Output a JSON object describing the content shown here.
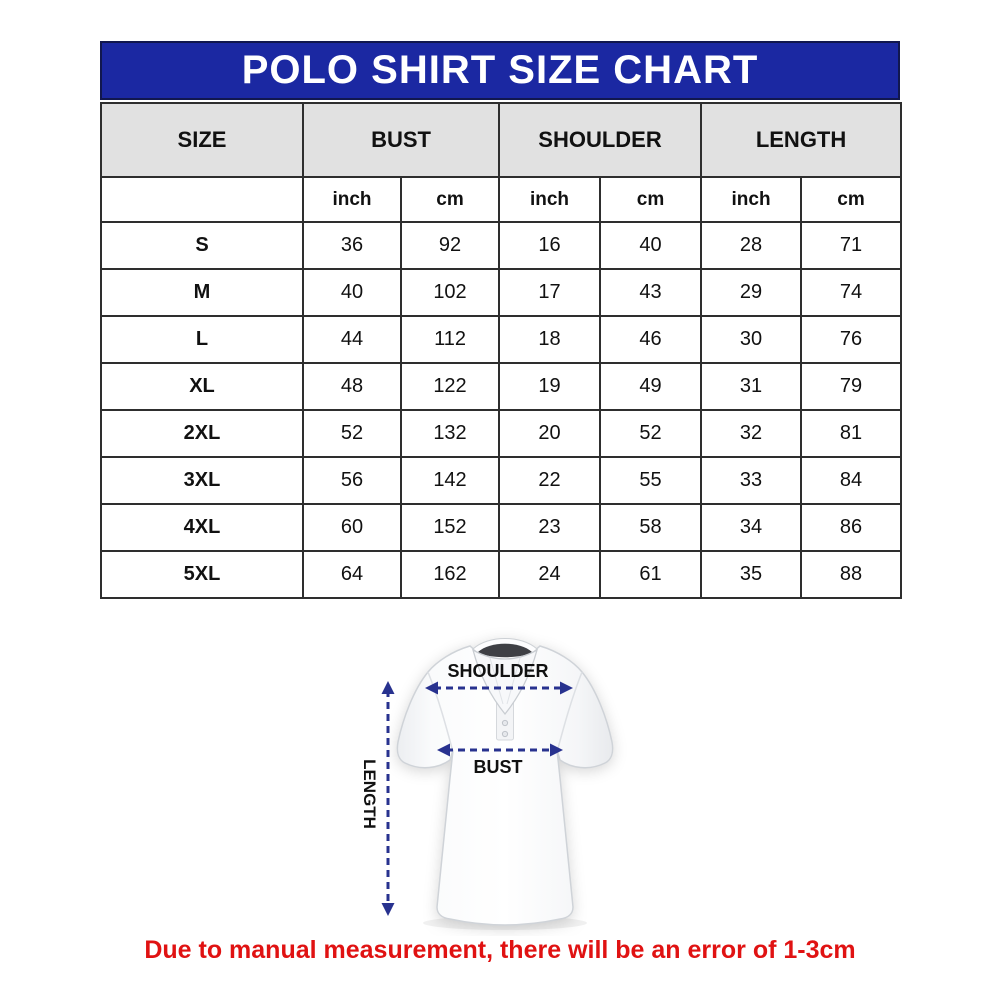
{
  "title": "POLO SHIRT SIZE CHART",
  "footnote": "Due to manual measurement, there will be an error of 1-3cm",
  "colors": {
    "title_bar_bg": "#1b28a2",
    "title_bar_border": "#11174e",
    "title_text": "#ffffff",
    "group_header_bg": "#e1e1e1",
    "table_border": "#2e2e2e",
    "footnote_red": "#e01212",
    "arrow_navy": "#28328f",
    "label_black": "#111111"
  },
  "chart_data": {
    "type": "table",
    "title": "POLO SHIRT SIZE CHART",
    "column_groups": [
      "SIZE",
      "BUST",
      "SHOULDER",
      "LENGTH"
    ],
    "unit_row": [
      "inch",
      "cm",
      "inch",
      "cm",
      "inch",
      "cm"
    ],
    "rows": [
      {
        "size": "S",
        "values": [
          36,
          92,
          16,
          40,
          28,
          71
        ]
      },
      {
        "size": "M",
        "values": [
          40,
          102,
          17,
          43,
          29,
          74
        ]
      },
      {
        "size": "L",
        "values": [
          44,
          112,
          18,
          46,
          30,
          76
        ]
      },
      {
        "size": "XL",
        "values": [
          48,
          122,
          19,
          49,
          31,
          79
        ]
      },
      {
        "size": "2XL",
        "values": [
          52,
          132,
          20,
          52,
          32,
          81
        ]
      },
      {
        "size": "3XL",
        "values": [
          56,
          142,
          22,
          55,
          33,
          84
        ]
      },
      {
        "size": "4XL",
        "values": [
          60,
          152,
          23,
          58,
          34,
          86
        ]
      },
      {
        "size": "5XL",
        "values": [
          64,
          162,
          24,
          61,
          35,
          88
        ]
      }
    ]
  },
  "diagram": {
    "shoulder_label": "SHOULDER",
    "bust_label": "BUST",
    "length_label": "LENGTH"
  }
}
